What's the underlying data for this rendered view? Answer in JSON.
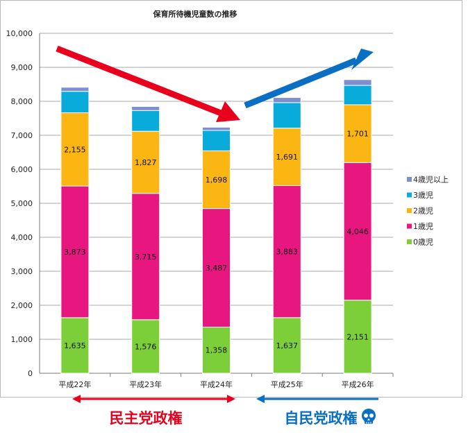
{
  "chart_data": {
    "type": "bar",
    "stacked": true,
    "title": "保育所待機児童数の推移",
    "categories": [
      "平成22年",
      "平成23年",
      "平成24年",
      "平成25年",
      "平成26年"
    ],
    "ylim": [
      0,
      10000
    ],
    "yticks": [
      "0",
      "1,000",
      "2,000",
      "3,000",
      "4,000",
      "5,000",
      "6,000",
      "7,000",
      "8,000",
      "9,000",
      "10,000"
    ],
    "grid": true,
    "legend_position": "right",
    "series": [
      {
        "name": "0歳児",
        "color": "#7dcf3a",
        "values": [
          1635,
          1576,
          1358,
          1637,
          2151
        ],
        "labels": [
          "1,635",
          "1,576",
          "1,358",
          "1,637",
          "2,151"
        ]
      },
      {
        "name": "1歳児",
        "color": "#e8177f",
        "values": [
          3873,
          3715,
          3487,
          3883,
          4046
        ],
        "labels": [
          "3,873",
          "3,715",
          "3,487",
          "3,883",
          "4,046"
        ]
      },
      {
        "name": "2歳児",
        "color": "#fbb614",
        "values": [
          2155,
          1827,
          1698,
          1691,
          1701
        ],
        "labels": [
          "2,155",
          "1,827",
          "1,698",
          "1,691",
          "1,701"
        ]
      },
      {
        "name": "3歳児",
        "color": "#08abd9",
        "values": [
          630,
          610,
          600,
          750,
          570
        ],
        "labels": []
      },
      {
        "name": "4歳児以上",
        "color": "#7d8fcf",
        "values": [
          120,
          120,
          95,
          150,
          170
        ],
        "labels": []
      }
    ],
    "annotations": {
      "trend_down_color": "#e8001c",
      "trend_up_color": "#0a6fc2",
      "left_era_label": "民主党政権",
      "right_era_label": "自民党政権",
      "skull_icon": "skull-icon"
    }
  }
}
